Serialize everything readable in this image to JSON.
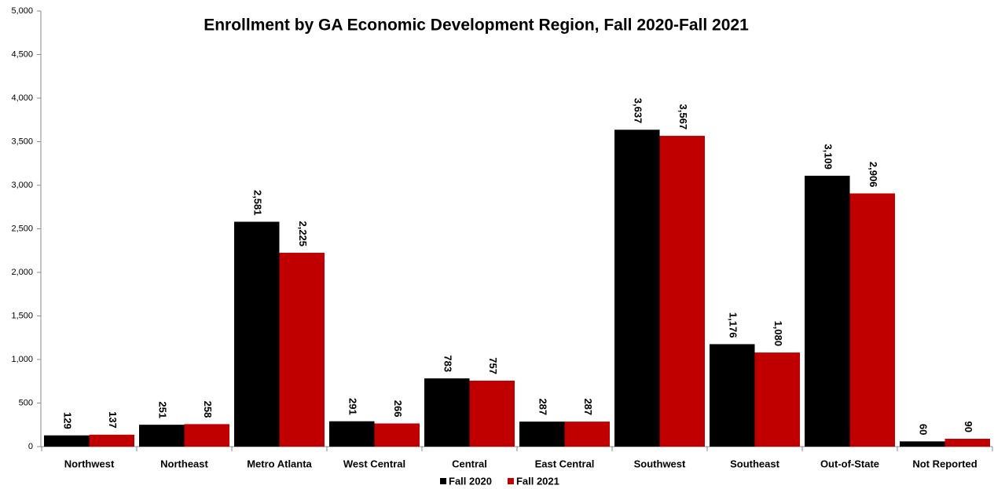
{
  "chart_data": {
    "type": "bar",
    "title": "Enrollment by GA Economic Development Region, Fall 2020-Fall 2021",
    "categories": [
      "Northwest",
      "Northeast",
      "Metro Atlanta",
      "West Central",
      "Central",
      "East Central",
      "Southwest",
      "Southeast",
      "Out-of-State",
      "Not Reported"
    ],
    "series": [
      {
        "name": "Fall 2020",
        "color": "#000000",
        "values": [
          129,
          251,
          2581,
          291,
          783,
          287,
          3637,
          1176,
          3109,
          60
        ],
        "value_labels": [
          "129",
          "251",
          "2,581",
          "291",
          "783",
          "287",
          "3,637",
          "1,176",
          "3,109",
          "60"
        ]
      },
      {
        "name": "Fall 2021",
        "color": "#c00000",
        "values": [
          137,
          258,
          2225,
          266,
          757,
          287,
          3567,
          1080,
          2906,
          90
        ],
        "value_labels": [
          "137",
          "258",
          "2,225",
          "266",
          "757",
          "287",
          "3,567",
          "1,080",
          "2,906",
          "90"
        ]
      }
    ],
    "ylim": [
      0,
      5000
    ],
    "yticks": [
      0,
      500,
      {
        "value": 1000,
        "label": "1,000"
      },
      {
        "value": 1500,
        "label": "1,500"
      },
      {
        "value": 2000,
        "label": "2,000"
      },
      {
        "value": 2500,
        "label": "2,500"
      },
      {
        "value": 3000,
        "label": "3,000"
      },
      {
        "value": 3500,
        "label": "3,500"
      },
      {
        "value": 4000,
        "label": "4,000"
      },
      {
        "value": 4500,
        "label": "4,500"
      },
      {
        "value": 5000,
        "label": "5,000"
      }
    ],
    "legend": "bottom",
    "grid": false
  }
}
